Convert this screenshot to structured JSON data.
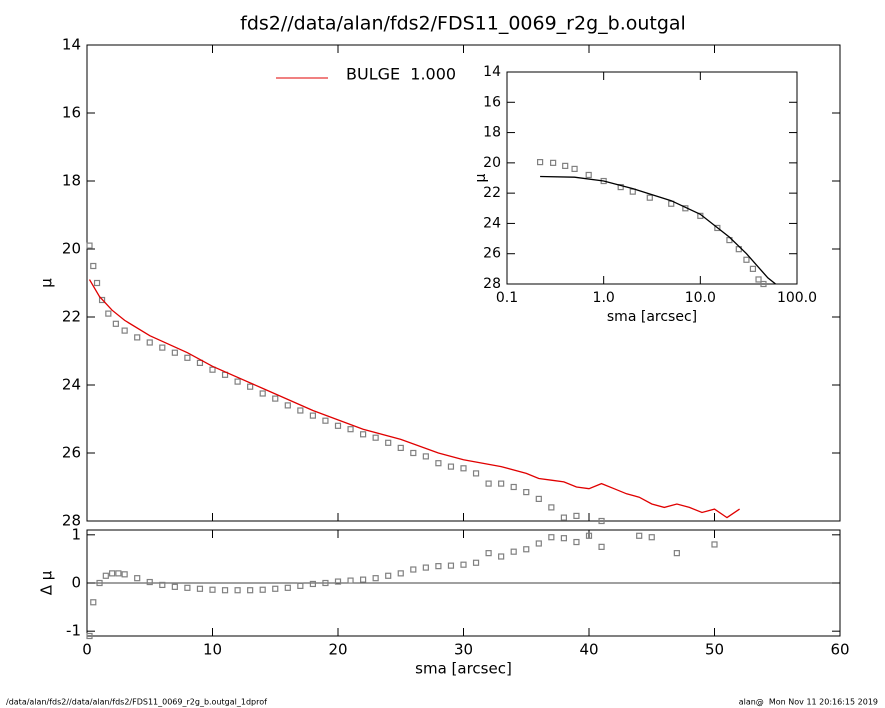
{
  "title": "fds2//data/alan/fds2/FDS11_0069_r2g_b.outgal",
  "footer_left": "/data/alan/fds2//data/alan/fds2/FDS11_0069_r2g_b.outgal_1dprof",
  "footer_right": "alan@  Mon Nov 11 20:16:15 2019",
  "chart_data": [
    {
      "type": "scatter",
      "ylabel": "μ",
      "xlim": [
        0,
        60
      ],
      "xticks": [
        0,
        10,
        20,
        30,
        40,
        50,
        60
      ],
      "ylim": [
        28,
        14
      ],
      "yticks": [
        14,
        16,
        18,
        20,
        22,
        24,
        26,
        28
      ],
      "points": {
        "color": "#808080",
        "x": [
          0.2,
          0.5,
          0.8,
          1.2,
          1.7,
          2.3,
          3,
          4,
          5,
          6,
          7,
          8,
          9,
          10,
          11,
          12,
          13,
          14,
          15,
          16,
          17,
          18,
          19,
          20,
          21,
          22,
          23,
          24,
          25,
          26,
          27,
          28,
          29,
          30,
          31,
          32,
          33,
          34,
          35,
          36,
          37,
          38,
          39,
          41
        ],
        "values": [
          19.9,
          20.5,
          21.0,
          21.5,
          21.9,
          22.2,
          22.4,
          22.6,
          22.75,
          22.9,
          23.05,
          23.2,
          23.35,
          23.55,
          23.7,
          23.9,
          24.05,
          24.25,
          24.4,
          24.6,
          24.75,
          24.9,
          25.05,
          25.2,
          25.3,
          25.45,
          25.55,
          25.7,
          25.85,
          26.0,
          26.1,
          26.3,
          26.4,
          26.45,
          26.6,
          26.9,
          26.9,
          27.0,
          27.15,
          27.35,
          27.6,
          27.9,
          27.85,
          28.0
        ]
      },
      "model": {
        "name": "BULGE  1.000",
        "color": "#e00000",
        "x": [
          0.2,
          1,
          2,
          3,
          5,
          8,
          10,
          14,
          18,
          22,
          25,
          28,
          30,
          33,
          35,
          36,
          37,
          38,
          39,
          40,
          41,
          42,
          43,
          44,
          45,
          46,
          47,
          48,
          49,
          50,
          51,
          52
        ],
        "values": [
          20.9,
          21.4,
          21.8,
          22.1,
          22.55,
          23.05,
          23.45,
          24.1,
          24.75,
          25.3,
          25.6,
          26.0,
          26.2,
          26.4,
          26.6,
          26.75,
          26.8,
          26.85,
          27.0,
          27.05,
          26.9,
          27.05,
          27.2,
          27.3,
          27.5,
          27.6,
          27.5,
          27.6,
          27.75,
          27.65,
          27.9,
          27.65
        ]
      }
    },
    {
      "type": "scatter",
      "ylabel": "Δ μ",
      "xlabel": "sma [arcsec]",
      "xlim": [
        0,
        60
      ],
      "xticks": [
        0,
        10,
        20,
        30,
        40,
        50,
        60
      ],
      "ylim": [
        -1.1,
        1.1
      ],
      "yticks": [
        -1,
        0,
        1
      ],
      "points": {
        "color": "#808080",
        "x": [
          0.2,
          0.5,
          1,
          1.5,
          2,
          2.5,
          3,
          4,
          5,
          6,
          7,
          8,
          9,
          10,
          11,
          12,
          13,
          14,
          15,
          16,
          17,
          18,
          19,
          20,
          21,
          22,
          23,
          24,
          25,
          26,
          27,
          28,
          29,
          30,
          31,
          32,
          33,
          34,
          35,
          36,
          37,
          38,
          39,
          40,
          41,
          44,
          45,
          47,
          50
        ],
        "values": [
          -1.1,
          -0.4,
          0.0,
          0.15,
          0.2,
          0.2,
          0.18,
          0.1,
          0.02,
          -0.04,
          -0.08,
          -0.1,
          -0.12,
          -0.14,
          -0.15,
          -0.15,
          -0.15,
          -0.14,
          -0.12,
          -0.1,
          -0.06,
          -0.02,
          0.0,
          0.03,
          0.05,
          0.07,
          0.1,
          0.15,
          0.2,
          0.28,
          0.32,
          0.35,
          0.36,
          0.38,
          0.42,
          0.62,
          0.55,
          0.65,
          0.7,
          0.82,
          0.95,
          0.93,
          0.85,
          0.98,
          0.75,
          0.98,
          0.95,
          0.62,
          0.8
        ]
      }
    },
    {
      "type": "scatter",
      "ylabel": "μ",
      "xlabel": "sma [arcsec]",
      "xlog": true,
      "xlim": [
        0.1,
        100
      ],
      "xticks": [
        {
          "value": 0.1,
          "label": "0.1"
        },
        {
          "value": 1,
          "label": "1.0"
        },
        {
          "value": 10,
          "label": "10.0"
        },
        {
          "value": 100,
          "label": "100.0"
        }
      ],
      "ylim": [
        28,
        14
      ],
      "yticks": [
        14,
        16,
        18,
        20,
        22,
        24,
        26,
        28
      ],
      "points": {
        "color": "#808080",
        "x": [
          0.22,
          0.3,
          0.4,
          0.5,
          0.7,
          1,
          1.5,
          2,
          3,
          5,
          7,
          10,
          15,
          20,
          25,
          30,
          35,
          40,
          45
        ],
        "values": [
          19.95,
          20.0,
          20.2,
          20.4,
          20.8,
          21.2,
          21.6,
          21.9,
          22.3,
          22.7,
          23.0,
          23.5,
          24.3,
          25.1,
          25.7,
          26.4,
          27.0,
          27.7,
          28.0
        ]
      },
      "model": {
        "color": "#000000",
        "x": [
          0.22,
          0.5,
          1,
          2,
          5,
          10,
          20,
          30,
          40,
          50,
          60
        ],
        "values": [
          20.9,
          20.95,
          21.2,
          21.7,
          22.5,
          23.4,
          24.9,
          26.0,
          26.9,
          27.6,
          28.0
        ]
      }
    }
  ]
}
